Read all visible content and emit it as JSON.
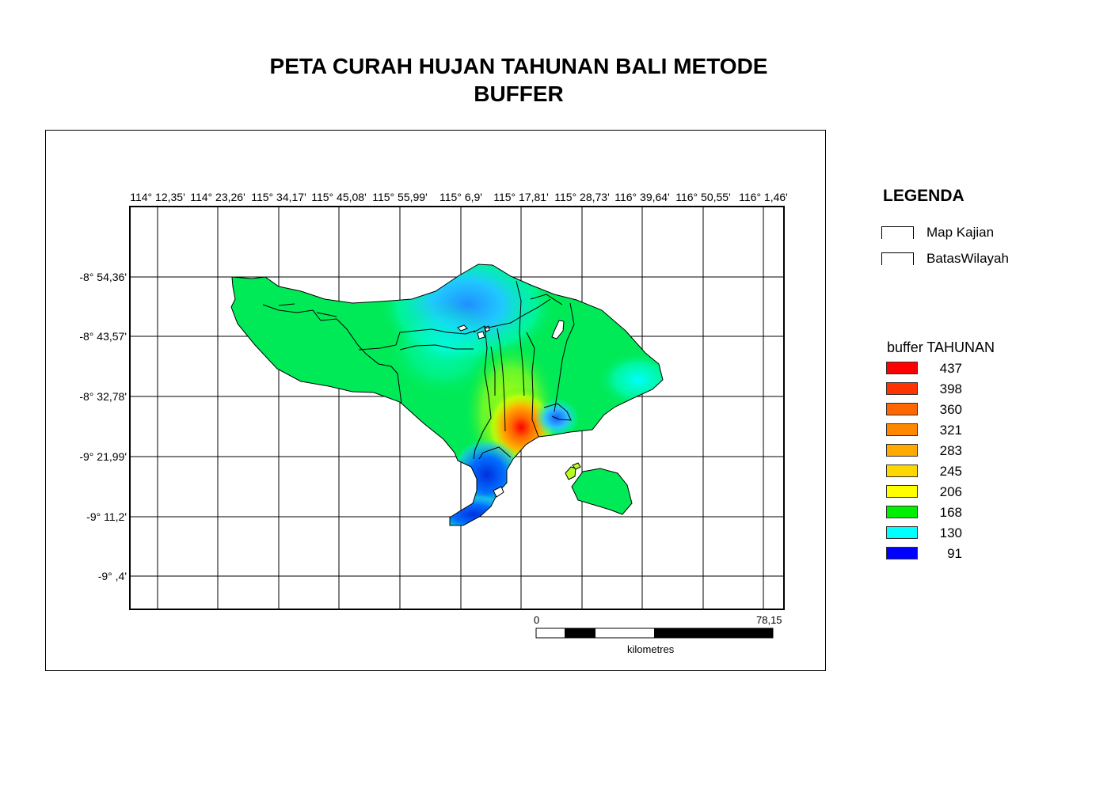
{
  "title": {
    "line1": "PETA CURAH HUJAN TAHUNAN BALI METODE",
    "line2": "BUFFER"
  },
  "axes": {
    "longitude_labels": [
      "114° 12,35'",
      "114° 23,26'",
      "115° 34,17'",
      "115° 45,08'",
      "115° 55,99'",
      "115° 6,9'",
      "115° 17,81'",
      "115° 28,73'",
      "116° 39,64'",
      "116° 50,55'",
      "116° 1,46'"
    ],
    "latitude_labels": [
      "-8° 54,36'",
      "-8° 43,57'",
      "-8° 32,78'",
      "-9° 21,99'",
      "-9° 11,2'",
      "-9° ,4'"
    ]
  },
  "scale_bar": {
    "start_label": "0",
    "end_label": "78,15",
    "unit": "kilometres"
  },
  "legend": {
    "title": "LEGENDA",
    "layers": [
      {
        "label": "Map Kajian"
      },
      {
        "label": "BatasWilayah"
      }
    ],
    "ramp_title": "buffer TAHUNAN",
    "ramp": [
      {
        "value": "437",
        "color": "#ff0000"
      },
      {
        "value": "398",
        "color": "#ff3300"
      },
      {
        "value": "360",
        "color": "#ff6600"
      },
      {
        "value": "321",
        "color": "#ff8800"
      },
      {
        "value": "283",
        "color": "#ffaa00"
      },
      {
        "value": "245",
        "color": "#ffd700"
      },
      {
        "value": "206",
        "color": "#ffff00"
      },
      {
        "value": "168",
        "color": "#00ee00"
      },
      {
        "value": "130",
        "color": "#00ffff"
      },
      {
        "value": "91",
        "color": "#0000ff"
      }
    ]
  }
}
